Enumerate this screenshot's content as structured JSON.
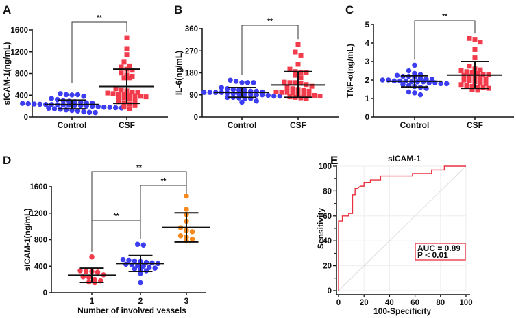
{
  "colors": {
    "control": "#3c3cf0",
    "csf": "#f23b4b",
    "group1": "#f23b4b",
    "group2": "#3c3cf0",
    "group3": "#f58a1f",
    "roc": "#e8303f",
    "axis": "#111111"
  },
  "chart_data": [
    {
      "panel": "A",
      "type": "scatter",
      "ylabel": "sICAM-1(ng/mL)",
      "ylim": [
        0,
        1600
      ],
      "yticks": [
        0,
        400,
        800,
        1200,
        1600
      ],
      "categories": [
        "Control",
        "CSF"
      ],
      "groups": [
        {
          "label": "Control",
          "marker": "circle",
          "mean": 230,
          "sd_upper": 310,
          "sd_lower": 150,
          "values": [
            430,
            410,
            405,
            410,
            380,
            340,
            320,
            300,
            290,
            280,
            270,
            260,
            255,
            250,
            245,
            240,
            235,
            230,
            228,
            225,
            220,
            215,
            210,
            205,
            200,
            195,
            190,
            180,
            175,
            170,
            165,
            160,
            150,
            140,
            130,
            120,
            110,
            95,
            85,
            80
          ]
        },
        {
          "label": "CSF",
          "marker": "square",
          "mean": 560,
          "sd_upper": 880,
          "sd_lower": 250,
          "values": [
            1460,
            1260,
            1150,
            1010,
            940,
            920,
            880,
            860,
            810,
            770,
            750,
            720,
            720,
            520,
            500,
            480,
            460,
            450,
            440,
            430,
            420,
            410,
            400,
            390,
            380,
            370,
            360,
            350,
            340,
            300,
            280,
            250,
            240,
            210,
            180,
            150
          ]
        }
      ],
      "significance": [
        {
          "from": "Control",
          "to": "CSF",
          "label": "**"
        }
      ]
    },
    {
      "panel": "B",
      "type": "scatter",
      "ylabel": "IL-6(ng/mL)",
      "ylim": [
        0,
        360
      ],
      "yticks": [
        0,
        90,
        180,
        270,
        360
      ],
      "categories": [
        "Control",
        "CSF"
      ],
      "groups": [
        {
          "label": "Control",
          "marker": "circle",
          "mean": 100,
          "sd_upper": 120,
          "sd_lower": 80,
          "values": [
            150,
            145,
            140,
            140,
            140,
            120,
            115,
            112,
            110,
            108,
            105,
            105,
            102,
            100,
            100,
            100,
            100,
            98,
            96,
            95,
            95,
            92,
            90,
            90,
            88,
            85,
            85,
            80,
            80,
            78,
            75,
            75,
            65,
            60
          ]
        },
        {
          "label": "CSF",
          "marker": "square",
          "mean": 130,
          "sd_upper": 185,
          "sd_lower": 80,
          "values": [
            295,
            265,
            250,
            215,
            195,
            185,
            182,
            180,
            170,
            160,
            142,
            140,
            140,
            138,
            132,
            125,
            120,
            115,
            112,
            110,
            105,
            102,
            100,
            100,
            98,
            95,
            92,
            90,
            88,
            85,
            82,
            80,
            78,
            75
          ]
        }
      ],
      "significance": [
        {
          "from": "Control",
          "to": "CSF",
          "label": "**"
        }
      ]
    },
    {
      "panel": "C",
      "type": "scatter",
      "ylabel": "TNF-α(ng/mL)",
      "ylim": [
        0,
        5
      ],
      "yticks": [
        0,
        1,
        2,
        3,
        4,
        5
      ],
      "categories": [
        "Control",
        "CSF"
      ],
      "groups": [
        {
          "label": "Control",
          "marker": "circle",
          "mean": 1.93,
          "sd_upper": 2.23,
          "sd_lower": 1.62,
          "values": [
            2.8,
            2.5,
            2.35,
            2.3,
            2.25,
            2.2,
            2.2,
            2.15,
            2.1,
            2.05,
            2.05,
            2.0,
            2.0,
            1.95,
            1.95,
            1.95,
            1.9,
            1.9,
            1.9,
            1.85,
            1.85,
            1.8,
            1.8,
            1.75,
            1.7,
            1.65,
            1.6,
            1.55,
            1.35,
            1.3,
            1.2
          ]
        },
        {
          "label": "CSF",
          "marker": "square",
          "mean": 2.27,
          "sd_upper": 3.0,
          "sd_lower": 1.55,
          "values": [
            4.25,
            4.2,
            4.05,
            3.65,
            3.2,
            2.75,
            2.6,
            2.55,
            2.5,
            2.45,
            2.4,
            2.35,
            2.3,
            2.3,
            2.25,
            2.2,
            2.15,
            2.1,
            2.05,
            2.0,
            1.95,
            1.9,
            1.85,
            1.8,
            1.75,
            1.7,
            1.65,
            1.6,
            1.6,
            1.55,
            1.5,
            1.45
          ]
        }
      ],
      "significance": [
        {
          "from": "Control",
          "to": "CSF",
          "label": "**"
        }
      ]
    },
    {
      "panel": "D",
      "type": "scatter",
      "ylabel": "sICAM-1(ng/mL)",
      "xlabel": "Number of involved vessels",
      "ylim": [
        0,
        1600
      ],
      "yticks": [
        0,
        400,
        800,
        1200,
        1600
      ],
      "categories": [
        "1",
        "2",
        "3"
      ],
      "groups": [
        {
          "label": "1",
          "marker": "circle",
          "mean": 265,
          "sd_upper": 370,
          "sd_lower": 155,
          "values": [
            540,
            330,
            320,
            320,
            310,
            270,
            240,
            230,
            200,
            180,
            160,
            150
          ]
        },
        {
          "label": "2",
          "marker": "circle",
          "mean": 440,
          "sd_upper": 560,
          "sd_lower": 320,
          "values": [
            730,
            720,
            500,
            490,
            480,
            470,
            460,
            450,
            440,
            430,
            420,
            410,
            400,
            380,
            370,
            360,
            350,
            330,
            290,
            150
          ]
        },
        {
          "label": "3",
          "marker": "circle",
          "mean": 985,
          "sd_upper": 1205,
          "sd_lower": 765,
          "values": [
            1460,
            1260,
            1180,
            1080,
            980,
            940,
            920,
            860,
            840,
            810,
            780
          ]
        }
      ],
      "significance": [
        {
          "from": "1",
          "to": "3",
          "label": "**"
        },
        {
          "from": "2",
          "to": "3",
          "label": "**"
        },
        {
          "from": "1",
          "to": "2",
          "label": "**"
        }
      ]
    },
    {
      "panel": "E",
      "type": "line",
      "title": "sICAM-1",
      "xlabel": "100-Specificity",
      "ylabel": "Sensitivity",
      "xlim": [
        0,
        100
      ],
      "ylim": [
        0,
        100
      ],
      "xticks": [
        0,
        20,
        40,
        60,
        80,
        100
      ],
      "yticks": [
        0,
        20,
        40,
        60,
        80,
        100
      ],
      "grid": true,
      "reference_line": [
        [
          0,
          0
        ],
        [
          100,
          100
        ]
      ],
      "roc_points": [
        [
          0,
          0
        ],
        [
          0,
          56
        ],
        [
          3,
          56
        ],
        [
          3,
          60
        ],
        [
          8,
          60
        ],
        [
          8,
          62
        ],
        [
          11,
          62
        ],
        [
          11,
          77
        ],
        [
          13,
          77
        ],
        [
          13,
          82
        ],
        [
          15,
          82
        ],
        [
          17,
          84
        ],
        [
          20,
          84
        ],
        [
          20,
          87
        ],
        [
          25,
          87
        ],
        [
          25,
          89
        ],
        [
          33,
          89
        ],
        [
          33,
          92
        ],
        [
          58,
          92
        ],
        [
          58,
          94
        ],
        [
          73,
          94
        ],
        [
          73,
          97
        ],
        [
          83,
          97
        ],
        [
          83,
          100
        ],
        [
          100,
          100
        ]
      ],
      "annotation": {
        "auc": "AUC = 0.89",
        "p": "P < 0.01"
      }
    }
  ]
}
